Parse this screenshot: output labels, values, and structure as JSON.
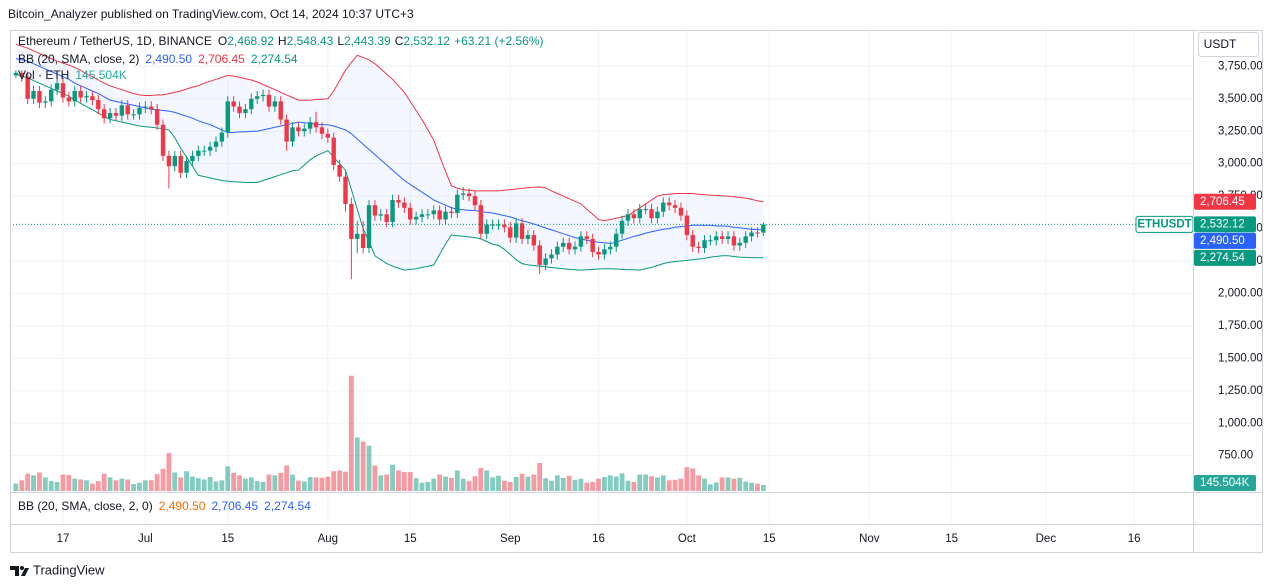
{
  "header": "Bitcoin_Analyzer published on TradingView.com, Oct 14, 2024 10:37 UTC+3",
  "footer": "TradingView",
  "legend": {
    "title": "Ethereum / TetherUS, 1D, BINANCE",
    "ohlc": [
      {
        "key": "O",
        "value": "2,468.92"
      },
      {
        "key": "H",
        "value": "2,548.43"
      },
      {
        "key": "L",
        "value": "2,443.39"
      },
      {
        "key": "C",
        "value": "2,532.12"
      }
    ],
    "change": "+63.21 (+2.56%)",
    "indicator": "BB (20, SMA, close, 2)",
    "indicator_values": [
      "2,490.50",
      "2,706.45",
      "2,274.54"
    ],
    "volume": "Vol · ETH",
    "volume_value": "145.504K"
  },
  "lower_pane": {
    "indicator": "BB (20, SMA, close, 2, 0)",
    "values": [
      "2,490.50",
      "2,706.45",
      "2,274.54"
    ]
  },
  "chart_data": {
    "type": "candlestick",
    "unit": "USDT",
    "symbol": "ETHUSDT",
    "up_color": "#089981",
    "down_color": "#f23645",
    "grid": true,
    "x": [
      "2024-06-09",
      "2024-06-10",
      "2024-06-11",
      "2024-06-12",
      "2024-06-13",
      "2024-06-14",
      "2024-06-15",
      "2024-06-16",
      "2024-06-17",
      "2024-06-18",
      "2024-06-19",
      "2024-06-20",
      "2024-06-21",
      "2024-06-22",
      "2024-06-23",
      "2024-06-24",
      "2024-06-25",
      "2024-06-26",
      "2024-06-27",
      "2024-06-28",
      "2024-06-29",
      "2024-06-30",
      "2024-07-01",
      "2024-07-02",
      "2024-07-03",
      "2024-07-04",
      "2024-07-05",
      "2024-07-06",
      "2024-07-07",
      "2024-07-08",
      "2024-07-09",
      "2024-07-10",
      "2024-07-11",
      "2024-07-12",
      "2024-07-13",
      "2024-07-14",
      "2024-07-15",
      "2024-07-16",
      "2024-07-17",
      "2024-07-18",
      "2024-07-19",
      "2024-07-20",
      "2024-07-21",
      "2024-07-22",
      "2024-07-23",
      "2024-07-24",
      "2024-07-25",
      "2024-07-26",
      "2024-07-27",
      "2024-07-28",
      "2024-07-29",
      "2024-07-30",
      "2024-07-31",
      "2024-08-01",
      "2024-08-02",
      "2024-08-03",
      "2024-08-04",
      "2024-08-05",
      "2024-08-06",
      "2024-08-07",
      "2024-08-08",
      "2024-08-09",
      "2024-08-10",
      "2024-08-11",
      "2024-08-12",
      "2024-08-13",
      "2024-08-14",
      "2024-08-15",
      "2024-08-16",
      "2024-08-17",
      "2024-08-18",
      "2024-08-19",
      "2024-08-20",
      "2024-08-21",
      "2024-08-22",
      "2024-08-23",
      "2024-08-24",
      "2024-08-25",
      "2024-08-26",
      "2024-08-27",
      "2024-08-28",
      "2024-08-29",
      "2024-08-30",
      "2024-08-31",
      "2024-09-01",
      "2024-09-02",
      "2024-09-03",
      "2024-09-04",
      "2024-09-05",
      "2024-09-06",
      "2024-09-07",
      "2024-09-08",
      "2024-09-09",
      "2024-09-10",
      "2024-09-11",
      "2024-09-12",
      "2024-09-13",
      "2024-09-14",
      "2024-09-15",
      "2024-09-16",
      "2024-09-17",
      "2024-09-18",
      "2024-09-19",
      "2024-09-20",
      "2024-09-21",
      "2024-09-22",
      "2024-09-23",
      "2024-09-24",
      "2024-09-25",
      "2024-09-26",
      "2024-09-27",
      "2024-09-28",
      "2024-09-29",
      "2024-09-30",
      "2024-10-01",
      "2024-10-02",
      "2024-10-03",
      "2024-10-04",
      "2024-10-05",
      "2024-10-06",
      "2024-10-07",
      "2024-10-08",
      "2024-10-09",
      "2024-10-10",
      "2024-10-11",
      "2024-10-12",
      "2024-10-13",
      "2024-10-14"
    ],
    "open": [
      3680,
      3700,
      3670,
      3500,
      3560,
      3470,
      3480,
      3570,
      3620,
      3510,
      3480,
      3560,
      3510,
      3520,
      3490,
      3420,
      3350,
      3390,
      3370,
      3450,
      3380,
      3380,
      3430,
      3440,
      3420,
      3300,
      3060,
      2980,
      3060,
      2930,
      3020,
      3060,
      3100,
      3100,
      3130,
      3170,
      3240,
      3480,
      3440,
      3390,
      3420,
      3500,
      3520,
      3530,
      3440,
      3480,
      3340,
      3170,
      3280,
      3250,
      3270,
      3320,
      3280,
      3230,
      3200,
      2990,
      2900,
      2690,
      2420,
      2460,
      2350,
      2680,
      2600,
      2610,
      2550,
      2720,
      2700,
      2660,
      2570,
      2590,
      2610,
      2610,
      2640,
      2570,
      2630,
      2620,
      2760,
      2770,
      2750,
      2680,
      2460,
      2530,
      2530,
      2530,
      2510,
      2430,
      2540,
      2420,
      2450,
      2370,
      2220,
      2270,
      2300,
      2360,
      2390,
      2340,
      2360,
      2440,
      2420,
      2320,
      2300,
      2340,
      2360,
      2460,
      2560,
      2610,
      2580,
      2650,
      2650,
      2580,
      2630,
      2700,
      2680,
      2660,
      2600,
      2450,
      2360,
      2350,
      2410,
      2410,
      2440,
      2420,
      2440,
      2370,
      2390,
      2440,
      2470,
      2468.92
    ],
    "high": [
      3720,
      3720,
      3710,
      3600,
      3600,
      3520,
      3610,
      3660,
      3660,
      3550,
      3600,
      3600,
      3560,
      3560,
      3530,
      3460,
      3430,
      3430,
      3490,
      3490,
      3420,
      3470,
      3480,
      3480,
      3460,
      3340,
      3100,
      3100,
      3100,
      3060,
      3100,
      3140,
      3140,
      3170,
      3210,
      3280,
      3520,
      3520,
      3480,
      3460,
      3540,
      3560,
      3570,
      3570,
      3520,
      3520,
      3380,
      3320,
      3320,
      3310,
      3360,
      3400,
      3320,
      3270,
      3240,
      3030,
      2940,
      2740,
      2560,
      2560,
      2720,
      2720,
      2650,
      2650,
      2760,
      2760,
      2740,
      2700,
      2630,
      2650,
      2650,
      2680,
      2680,
      2670,
      2670,
      2800,
      2820,
      2810,
      2790,
      2720,
      2570,
      2570,
      2570,
      2570,
      2550,
      2580,
      2580,
      2490,
      2490,
      2410,
      2310,
      2340,
      2400,
      2430,
      2430,
      2400,
      2480,
      2480,
      2460,
      2360,
      2380,
      2400,
      2500,
      2600,
      2650,
      2650,
      2690,
      2690,
      2690,
      2670,
      2740,
      2740,
      2720,
      2700,
      2640,
      2490,
      2400,
      2450,
      2450,
      2480,
      2480,
      2480,
      2480,
      2430,
      2480,
      2510,
      2510,
      2548.43
    ],
    "low": [
      3660,
      3630,
      3460,
      3460,
      3430,
      3430,
      3440,
      3530,
      3470,
      3440,
      3440,
      3470,
      3470,
      3450,
      3380,
      3310,
      3310,
      3330,
      3330,
      3340,
      3340,
      3340,
      3390,
      3380,
      3260,
      3020,
      2810,
      2940,
      2890,
      2890,
      2980,
      3020,
      3060,
      3060,
      3090,
      3130,
      3200,
      3400,
      3350,
      3350,
      3380,
      3460,
      3480,
      3400,
      3400,
      3300,
      3100,
      3130,
      3210,
      3210,
      3230,
      3240,
      3190,
      3160,
      2950,
      2860,
      2630,
      2110,
      2310,
      2310,
      2310,
      2560,
      2560,
      2510,
      2510,
      2660,
      2620,
      2530,
      2530,
      2550,
      2570,
      2570,
      2530,
      2530,
      2580,
      2580,
      2720,
      2710,
      2640,
      2420,
      2420,
      2490,
      2490,
      2470,
      2390,
      2390,
      2380,
      2380,
      2330,
      2150,
      2180,
      2230,
      2260,
      2320,
      2300,
      2300,
      2320,
      2380,
      2280,
      2260,
      2260,
      2300,
      2320,
      2420,
      2520,
      2540,
      2540,
      2610,
      2540,
      2540,
      2590,
      2640,
      2620,
      2560,
      2410,
      2320,
      2310,
      2310,
      2370,
      2370,
      2380,
      2380,
      2330,
      2330,
      2350,
      2400,
      2430,
      2443.39
    ],
    "close": [
      3700,
      3670,
      3500,
      3560,
      3470,
      3480,
      3570,
      3620,
      3510,
      3480,
      3560,
      3510,
      3520,
      3490,
      3420,
      3350,
      3390,
      3370,
      3450,
      3380,
      3380,
      3430,
      3440,
      3420,
      3300,
      3060,
      2980,
      3060,
      2930,
      3020,
      3060,
      3100,
      3100,
      3130,
      3170,
      3240,
      3480,
      3440,
      3390,
      3420,
      3500,
      3520,
      3530,
      3440,
      3480,
      3340,
      3170,
      3280,
      3250,
      3270,
      3320,
      3280,
      3230,
      3200,
      2990,
      2900,
      2690,
      2420,
      2460,
      2350,
      2680,
      2600,
      2610,
      2550,
      2720,
      2700,
      2660,
      2570,
      2590,
      2610,
      2610,
      2640,
      2570,
      2630,
      2620,
      2760,
      2770,
      2750,
      2680,
      2460,
      2530,
      2530,
      2530,
      2510,
      2430,
      2540,
      2420,
      2450,
      2370,
      2220,
      2270,
      2300,
      2360,
      2390,
      2340,
      2360,
      2440,
      2420,
      2320,
      2300,
      2340,
      2360,
      2460,
      2560,
      2610,
      2580,
      2650,
      2650,
      2580,
      2630,
      2700,
      2680,
      2660,
      2600,
      2450,
      2360,
      2350,
      2410,
      2410,
      2440,
      2420,
      2440,
      2370,
      2390,
      2440,
      2470,
      2468.92,
      2532.12
    ],
    "volume": [
      180000,
      260000,
      420000,
      380000,
      450000,
      330000,
      240000,
      220000,
      400000,
      390000,
      300000,
      280000,
      260000,
      180000,
      240000,
      420000,
      330000,
      260000,
      300000,
      280000,
      170000,
      200000,
      260000,
      260000,
      410000,
      540000,
      920000,
      450000,
      330000,
      480000,
      350000,
      310000,
      280000,
      340000,
      230000,
      260000,
      600000,
      440000,
      380000,
      300000,
      330000,
      240000,
      220000,
      400000,
      380000,
      440000,
      620000,
      400000,
      250000,
      230000,
      340000,
      330000,
      320000,
      350000,
      480000,
      500000,
      470000,
      2800000,
      1300000,
      1200000,
      1100000,
      620000,
      380000,
      400000,
      640000,
      500000,
      460000,
      460000,
      310000,
      200000,
      220000,
      300000,
      400000,
      350000,
      320000,
      500000,
      300000,
      240000,
      360000,
      560000,
      500000,
      330000,
      370000,
      250000,
      220000,
      340000,
      420000,
      350000,
      400000,
      680000,
      310000,
      250000,
      380000,
      320000,
      370000,
      270000,
      300000,
      200000,
      220000,
      300000,
      340000,
      380000,
      350000,
      430000,
      250000,
      220000,
      400000,
      400000,
      360000,
      330000,
      380000,
      260000,
      270000,
      300000,
      580000,
      550000,
      380000,
      300000,
      160000,
      210000,
      330000,
      330000,
      300000,
      320000,
      230000,
      200000,
      180000,
      145504
    ],
    "bb": {
      "colors": {
        "basis": "#2962ff",
        "upper": "#f23645",
        "lower": "#089981"
      },
      "fill": "#2962ff",
      "basis": [
        3810,
        3800,
        3790,
        3770,
        3750,
        3730,
        3710,
        3690,
        3670,
        3650,
        3620,
        3600,
        3580,
        3560,
        3540,
        3515,
        3490,
        3480,
        3470,
        3460,
        3450,
        3440,
        3430,
        3420,
        3415,
        3410,
        3405,
        3395,
        3380,
        3365,
        3350,
        3330,
        3315,
        3300,
        3280,
        3260,
        3240,
        3240,
        3245,
        3245,
        3250,
        3250,
        3260,
        3270,
        3280,
        3290,
        3300,
        3310,
        3320,
        3315,
        3310,
        3305,
        3300,
        3300,
        3290,
        3275,
        3260,
        3230,
        3190,
        3150,
        3110,
        3070,
        3030,
        2990,
        2950,
        2910,
        2870,
        2840,
        2810,
        2780,
        2750,
        2720,
        2700,
        2680,
        2660,
        2650,
        2645,
        2640,
        2640,
        2630,
        2625,
        2620,
        2610,
        2600,
        2590,
        2575,
        2560,
        2550,
        2535,
        2520,
        2505,
        2490,
        2475,
        2460,
        2445,
        2430,
        2420,
        2410,
        2400,
        2395,
        2390,
        2385,
        2395,
        2410,
        2425,
        2440,
        2450,
        2465,
        2475,
        2485,
        2495,
        2500,
        2510,
        2515,
        2520,
        2525,
        2525,
        2525,
        2525,
        2520,
        2520,
        2517,
        2510,
        2505,
        2500,
        2495,
        2492,
        2490.5
      ],
      "upper": [
        3920,
        3905,
        3890,
        3870,
        3850,
        3830,
        3810,
        3790,
        3775,
        3760,
        3740,
        3720,
        3690,
        3670,
        3645,
        3620,
        3600,
        3585,
        3570,
        3555,
        3540,
        3530,
        3525,
        3525,
        3530,
        3530,
        3540,
        3550,
        3560,
        3575,
        3590,
        3600,
        3620,
        3635,
        3650,
        3665,
        3680,
        3675,
        3665,
        3655,
        3645,
        3630,
        3610,
        3590,
        3570,
        3550,
        3530,
        3510,
        3490,
        3490,
        3490,
        3495,
        3495,
        3500,
        3560,
        3640,
        3720,
        3780,
        3835,
        3820,
        3800,
        3770,
        3730,
        3690,
        3650,
        3600,
        3550,
        3480,
        3410,
        3340,
        3260,
        3180,
        3060,
        2940,
        2830,
        2810,
        2800,
        2795,
        2790,
        2790,
        2790,
        2790,
        2790,
        2795,
        2800,
        2805,
        2810,
        2815,
        2818,
        2820,
        2815,
        2790,
        2770,
        2750,
        2730,
        2710,
        2690,
        2650,
        2610,
        2570,
        2560,
        2570,
        2580,
        2590,
        2600,
        2630,
        2660,
        2690,
        2720,
        2750,
        2760,
        2765,
        2770,
        2770,
        2770,
        2770,
        2765,
        2760,
        2758,
        2755,
        2752,
        2750,
        2745,
        2740,
        2735,
        2725,
        2715,
        2706.45
      ],
      "lower": [
        3690,
        3675,
        3660,
        3640,
        3620,
        3600,
        3580,
        3560,
        3540,
        3520,
        3490,
        3465,
        3440,
        3415,
        3390,
        3365,
        3340,
        3330,
        3320,
        3310,
        3300,
        3290,
        3285,
        3280,
        3275,
        3270,
        3260,
        3200,
        3120,
        3050,
        2980,
        2910,
        2900,
        2890,
        2880,
        2870,
        2865,
        2860,
        2858,
        2856,
        2855,
        2855,
        2870,
        2885,
        2900,
        2915,
        2930,
        2945,
        2950,
        2990,
        3030,
        3060,
        3080,
        3100,
        3050,
        3000,
        2950,
        2800,
        2650,
        2500,
        2400,
        2290,
        2260,
        2230,
        2210,
        2195,
        2180,
        2185,
        2190,
        2200,
        2210,
        2220,
        2300,
        2380,
        2450,
        2445,
        2440,
        2435,
        2430,
        2420,
        2400,
        2380,
        2370,
        2340,
        2300,
        2260,
        2230,
        2220,
        2215,
        2210,
        2205,
        2200,
        2195,
        2190,
        2185,
        2182,
        2180,
        2182,
        2185,
        2188,
        2190,
        2190,
        2188,
        2185,
        2183,
        2182,
        2180,
        2190,
        2200,
        2215,
        2230,
        2240,
        2245,
        2250,
        2255,
        2260,
        2265,
        2270,
        2280,
        2285,
        2290,
        2290,
        2285,
        2280,
        2278,
        2276,
        2275,
        2274.54
      ]
    },
    "xlim": [
      "2024-06-08",
      "2024-12-26"
    ],
    "ylim": [
      470,
      4030
    ],
    "volume_ylim": [
      0,
      11200000
    ],
    "yticks": [
      {
        "value": 750,
        "label": "750.00"
      },
      {
        "value": 1000,
        "label": "1,000.00"
      },
      {
        "value": 1250,
        "label": "1,250.00"
      },
      {
        "value": 1500,
        "label": "1,500.00"
      },
      {
        "value": 1750,
        "label": "1,750.00"
      },
      {
        "value": 2000,
        "label": "2,000.00"
      },
      {
        "value": 2250,
        "label": "2,250.00"
      },
      {
        "value": 2500,
        "label": "2,500.00"
      },
      {
        "value": 2750,
        "label": "2,750.00"
      },
      {
        "value": 3000,
        "label": "3,000.00"
      },
      {
        "value": 3250,
        "label": "3,250.00"
      },
      {
        "value": 3500,
        "label": "3,500.00"
      },
      {
        "value": 3750,
        "label": "3,750.00"
      }
    ],
    "xticks": [
      {
        "value": "2024-06-17",
        "label": "17"
      },
      {
        "value": "2024-07-01",
        "label": "Jul"
      },
      {
        "value": "2024-07-15",
        "label": "15"
      },
      {
        "value": "2024-08-01",
        "label": "Aug"
      },
      {
        "value": "2024-08-15",
        "label": "15"
      },
      {
        "value": "2024-09-01",
        "label": "Sep"
      },
      {
        "value": "2024-09-16",
        "label": "16"
      },
      {
        "value": "2024-10-01",
        "label": "Oct"
      },
      {
        "value": "2024-10-15",
        "label": "15"
      },
      {
        "value": "2024-11-01",
        "label": "Nov"
      },
      {
        "value": "2024-11-15",
        "label": "15"
      },
      {
        "value": "2024-12-01",
        "label": "Dec"
      },
      {
        "value": "2024-12-16",
        "label": "16"
      }
    ],
    "badges": [
      {
        "value": 2706.45,
        "label": "2,706.45",
        "color": "#f23645"
      },
      {
        "value": 2532.12,
        "label": "2,532.12",
        "color": "#089981"
      },
      {
        "value": 2490.5,
        "label": "2,490.50",
        "color": "#2962ff"
      },
      {
        "value": 2274.54,
        "label": "2,274.54",
        "color": "#089981"
      }
    ],
    "volume_badge": {
      "value": 145504,
      "label": "145.504K",
      "color": "#26a69a"
    }
  }
}
